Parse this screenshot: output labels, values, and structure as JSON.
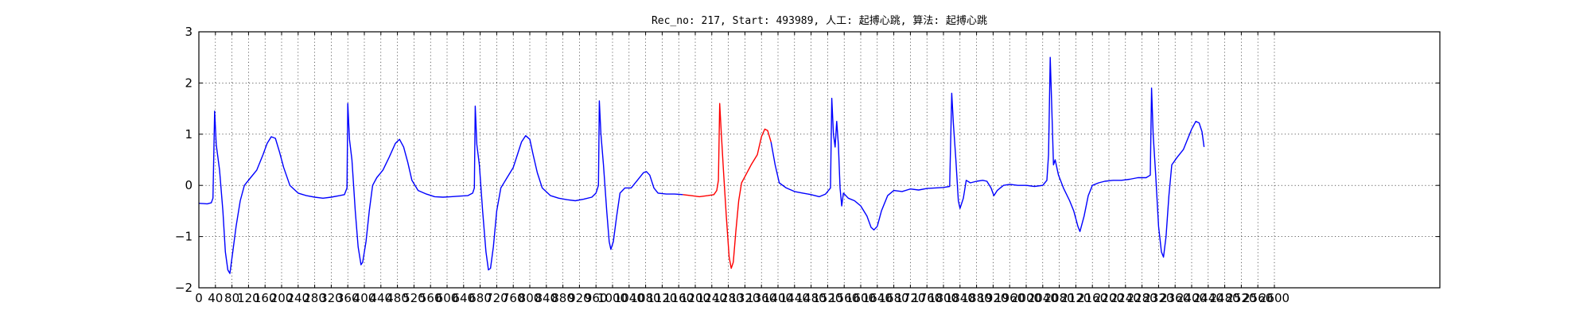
{
  "chart_data": {
    "type": "line",
    "title": "Rec_no: 217, Start: 493989, 人工: 起搏心跳, 算法: 起搏心跳",
    "xlabel": "",
    "ylabel": "",
    "xlim": [
      0,
      3000
    ],
    "ylim": [
      -2,
      3
    ],
    "grid": true,
    "legend": "none",
    "y_ticks": [
      -2,
      -1,
      0,
      1,
      2,
      3
    ],
    "y_tick_labels": [
      "−2",
      "−1",
      "0",
      "1",
      "2",
      "3"
    ],
    "x_ticks": [
      0,
      40,
      80,
      120,
      160,
      200,
      240,
      280,
      320,
      360,
      400,
      440,
      480,
      520,
      560,
      600,
      640,
      680,
      720,
      760,
      800,
      840,
      880,
      920,
      960,
      1000,
      1040,
      1080,
      1120,
      1160,
      1200,
      1240,
      1280,
      1320,
      1360,
      1400,
      1440,
      1480,
      1520,
      1560,
      1600,
      1640,
      1680,
      1720,
      1760,
      1800,
      1840,
      1880,
      1920,
      1960,
      2000,
      2040,
      2080,
      2120,
      2160,
      2200,
      2240,
      2280,
      2320,
      2360,
      2400,
      2440,
      2480,
      2520,
      2560,
      2600
    ],
    "x_tick_labels": [
      "0",
      "40",
      "80",
      "120",
      "160",
      "200",
      "240",
      "280",
      "320",
      "360",
      "400",
      "440",
      "480",
      "520",
      "560",
      "600",
      "640",
      "680",
      "720",
      "760",
      "800",
      "840",
      "880",
      "920",
      "960",
      "1000",
      "1040",
      "1080",
      "1120",
      "1160",
      "1200",
      "1240",
      "1280",
      "1320",
      "1360",
      "1400",
      "1440",
      "1480",
      "1520",
      "1560",
      "1600",
      "1640",
      "1680",
      "1720",
      "1760",
      "1800",
      "1840",
      "1880",
      "1920",
      "1960",
      "2000",
      "2040",
      "2080",
      "2120",
      "2160",
      "2200",
      "2240",
      "2280",
      "2320",
      "2360",
      "2400",
      "2440",
      "2480",
      "2520",
      "2560",
      "2600"
    ],
    "series": [
      {
        "color": "#0000ff",
        "points": [
          [
            0,
            -0.35
          ],
          [
            20,
            -0.36
          ],
          [
            30,
            -0.34
          ],
          [
            34,
            -0.25
          ],
          [
            38,
            1.45
          ],
          [
            42,
            0.8
          ],
          [
            50,
            0.3
          ],
          [
            58,
            -0.5
          ],
          [
            64,
            -1.3
          ],
          [
            70,
            -1.65
          ],
          [
            75,
            -1.72
          ],
          [
            82,
            -1.3
          ],
          [
            90,
            -0.8
          ],
          [
            100,
            -0.3
          ],
          [
            110,
            0.0
          ],
          [
            125,
            0.15
          ],
          [
            140,
            0.3
          ],
          [
            155,
            0.6
          ],
          [
            165,
            0.82
          ],
          [
            175,
            0.95
          ],
          [
            185,
            0.92
          ],
          [
            195,
            0.65
          ],
          [
            205,
            0.35
          ],
          [
            220,
            0.0
          ],
          [
            240,
            -0.15
          ],
          [
            260,
            -0.2
          ],
          [
            280,
            -0.23
          ],
          [
            300,
            -0.25
          ],
          [
            320,
            -0.23
          ],
          [
            340,
            -0.2
          ],
          [
            352,
            -0.18
          ],
          [
            358,
            -0.05
          ],
          [
            360,
            1.6
          ],
          [
            364,
            0.9
          ],
          [
            370,
            0.5
          ],
          [
            378,
            -0.5
          ],
          [
            385,
            -1.2
          ],
          [
            392,
            -1.55
          ],
          [
            396,
            -1.5
          ],
          [
            404,
            -1.1
          ],
          [
            412,
            -0.5
          ],
          [
            420,
            0.0
          ],
          [
            430,
            0.15
          ],
          [
            445,
            0.3
          ],
          [
            460,
            0.55
          ],
          [
            475,
            0.82
          ],
          [
            485,
            0.9
          ],
          [
            495,
            0.75
          ],
          [
            505,
            0.45
          ],
          [
            515,
            0.1
          ],
          [
            530,
            -0.1
          ],
          [
            550,
            -0.17
          ],
          [
            570,
            -0.22
          ],
          [
            590,
            -0.23
          ],
          [
            610,
            -0.22
          ],
          [
            630,
            -0.21
          ],
          [
            650,
            -0.2
          ],
          [
            662,
            -0.15
          ],
          [
            666,
            -0.05
          ],
          [
            668,
            1.55
          ],
          [
            672,
            0.8
          ],
          [
            678,
            0.4
          ],
          [
            686,
            -0.5
          ],
          [
            694,
            -1.3
          ],
          [
            700,
            -1.65
          ],
          [
            705,
            -1.62
          ],
          [
            712,
            -1.2
          ],
          [
            720,
            -0.5
          ],
          [
            730,
            -0.05
          ],
          [
            745,
            0.15
          ],
          [
            760,
            0.35
          ],
          [
            770,
            0.6
          ],
          [
            780,
            0.85
          ],
          [
            790,
            0.97
          ],
          [
            800,
            0.9
          ],
          [
            808,
            0.6
          ],
          [
            818,
            0.25
          ],
          [
            830,
            -0.05
          ],
          [
            850,
            -0.2
          ],
          [
            870,
            -0.25
          ],
          [
            890,
            -0.28
          ],
          [
            910,
            -0.3
          ],
          [
            930,
            -0.27
          ],
          [
            950,
            -0.23
          ],
          [
            960,
            -0.15
          ],
          [
            966,
            0.0
          ],
          [
            968,
            1.65
          ],
          [
            972,
            1.0
          ],
          [
            978,
            0.4
          ],
          [
            986,
            -0.5
          ],
          [
            992,
            -1.1
          ],
          [
            996,
            -1.25
          ],
          [
            1002,
            -1.1
          ],
          [
            1010,
            -0.6
          ],
          [
            1018,
            -0.15
          ],
          [
            1030,
            -0.05
          ],
          [
            1045,
            -0.05
          ],
          [
            1060,
            0.1
          ],
          [
            1075,
            0.25
          ],
          [
            1082,
            0.27
          ],
          [
            1090,
            0.2
          ],
          [
            1100,
            -0.05
          ],
          [
            1110,
            -0.15
          ],
          [
            1130,
            -0.17
          ],
          [
            1150,
            -0.17
          ],
          [
            1170,
            -0.18
          ]
        ]
      },
      {
        "color": "#ff0000",
        "points": [
          [
            1170,
            -0.18
          ],
          [
            1190,
            -0.2
          ],
          [
            1210,
            -0.22
          ],
          [
            1230,
            -0.2
          ],
          [
            1245,
            -0.18
          ],
          [
            1252,
            -0.1
          ],
          [
            1256,
            0.1
          ],
          [
            1259,
            1.6
          ],
          [
            1263,
            1.0
          ],
          [
            1268,
            0.3
          ],
          [
            1275,
            -0.6
          ],
          [
            1282,
            -1.4
          ],
          [
            1287,
            -1.62
          ],
          [
            1292,
            -1.5
          ],
          [
            1298,
            -0.9
          ],
          [
            1305,
            -0.3
          ],
          [
            1312,
            0.05
          ],
          [
            1322,
            0.2
          ],
          [
            1335,
            0.4
          ],
          [
            1350,
            0.6
          ],
          [
            1360,
            0.95
          ],
          [
            1368,
            1.1
          ],
          [
            1375,
            1.07
          ],
          [
            1383,
            0.85
          ]
        ]
      },
      {
        "color": "#0000ff",
        "points": [
          [
            1383,
            0.85
          ],
          [
            1393,
            0.4
          ],
          [
            1403,
            0.05
          ],
          [
            1420,
            -0.05
          ],
          [
            1440,
            -0.12
          ],
          [
            1460,
            -0.15
          ],
          [
            1480,
            -0.18
          ],
          [
            1500,
            -0.22
          ],
          [
            1515,
            -0.17
          ],
          [
            1527,
            -0.05
          ],
          [
            1530,
            1.7
          ],
          [
            1534,
            1.0
          ],
          [
            1538,
            0.75
          ],
          [
            1542,
            1.25
          ],
          [
            1546,
            0.8
          ],
          [
            1550,
            -0.05
          ],
          [
            1554,
            -0.4
          ],
          [
            1558,
            -0.15
          ],
          [
            1570,
            -0.25
          ],
          [
            1585,
            -0.3
          ],
          [
            1600,
            -0.4
          ],
          [
            1615,
            -0.6
          ],
          [
            1625,
            -0.82
          ],
          [
            1632,
            -0.87
          ],
          [
            1640,
            -0.8
          ],
          [
            1650,
            -0.5
          ],
          [
            1665,
            -0.2
          ],
          [
            1680,
            -0.1
          ],
          [
            1700,
            -0.12
          ],
          [
            1720,
            -0.07
          ],
          [
            1740,
            -0.09
          ],
          [
            1760,
            -0.06
          ],
          [
            1780,
            -0.05
          ],
          [
            1800,
            -0.04
          ],
          [
            1815,
            -0.02
          ],
          [
            1820,
            1.8
          ],
          [
            1824,
            1.2
          ],
          [
            1830,
            0.5
          ],
          [
            1836,
            -0.3
          ],
          [
            1840,
            -0.45
          ],
          [
            1848,
            -0.25
          ],
          [
            1855,
            0.1
          ],
          [
            1865,
            0.05
          ],
          [
            1880,
            0.08
          ],
          [
            1895,
            0.1
          ],
          [
            1905,
            0.08
          ],
          [
            1915,
            -0.05
          ],
          [
            1922,
            -0.2
          ],
          [
            1930,
            -0.1
          ],
          [
            1945,
            0.0
          ],
          [
            1960,
            0.02
          ],
          [
            1980,
            0.0
          ],
          [
            2000,
            0.0
          ],
          [
            2020,
            -0.02
          ],
          [
            2040,
            0.0
          ],
          [
            2050,
            0.1
          ],
          [
            2054,
            0.6
          ],
          [
            2058,
            2.5
          ],
          [
            2062,
            1.5
          ],
          [
            2066,
            0.4
          ],
          [
            2070,
            0.5
          ],
          [
            2078,
            0.2
          ],
          [
            2090,
            -0.05
          ],
          [
            2105,
            -0.3
          ],
          [
            2115,
            -0.5
          ],
          [
            2125,
            -0.8
          ],
          [
            2130,
            -0.9
          ],
          [
            2140,
            -0.6
          ],
          [
            2150,
            -0.2
          ],
          [
            2160,
            0.0
          ],
          [
            2175,
            0.05
          ],
          [
            2190,
            0.08
          ],
          [
            2210,
            0.1
          ],
          [
            2230,
            0.1
          ],
          [
            2250,
            0.12
          ],
          [
            2270,
            0.15
          ],
          [
            2290,
            0.15
          ],
          [
            2300,
            0.2
          ],
          [
            2303,
            1.9
          ],
          [
            2307,
            1.0
          ],
          [
            2313,
            0.2
          ],
          [
            2320,
            -0.8
          ],
          [
            2327,
            -1.3
          ],
          [
            2332,
            -1.4
          ],
          [
            2338,
            -1.0
          ],
          [
            2345,
            -0.2
          ],
          [
            2352,
            0.4
          ],
          [
            2365,
            0.55
          ],
          [
            2380,
            0.7
          ],
          [
            2390,
            0.9
          ],
          [
            2400,
            1.1
          ],
          [
            2410,
            1.25
          ],
          [
            2418,
            1.22
          ],
          [
            2425,
            1.05
          ],
          [
            2430,
            0.75
          ]
        ]
      }
    ]
  }
}
